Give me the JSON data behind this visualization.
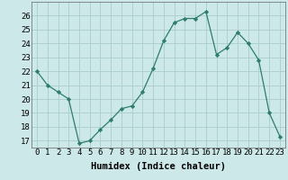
{
  "x": [
    0,
    1,
    2,
    3,
    4,
    5,
    6,
    7,
    8,
    9,
    10,
    11,
    12,
    13,
    14,
    15,
    16,
    17,
    18,
    19,
    20,
    21,
    22,
    23
  ],
  "y": [
    22,
    21,
    20.5,
    20,
    16.8,
    17.0,
    17.8,
    18.5,
    19.3,
    19.5,
    20.5,
    22.2,
    24.2,
    25.5,
    25.8,
    25.8,
    26.3,
    23.2,
    23.7,
    24.8,
    24.0,
    22.8,
    19.0,
    17.3
  ],
  "xlabel": "Humidex (Indice chaleur)",
  "ylim": [
    16.5,
    27.0
  ],
  "xlim": [
    -0.5,
    23.5
  ],
  "yticks": [
    17,
    18,
    19,
    20,
    21,
    22,
    23,
    24,
    25,
    26
  ],
  "xticks": [
    0,
    1,
    2,
    3,
    4,
    5,
    6,
    7,
    8,
    9,
    10,
    11,
    12,
    13,
    14,
    15,
    16,
    17,
    18,
    19,
    20,
    21,
    22,
    23
  ],
  "line_color": "#2e7d6e",
  "marker": "D",
  "marker_size": 2.2,
  "bg_color": "#cce8e8",
  "grid_color": "#aacccc",
  "xlabel_fontsize": 7.5,
  "tick_fontsize": 6.5
}
